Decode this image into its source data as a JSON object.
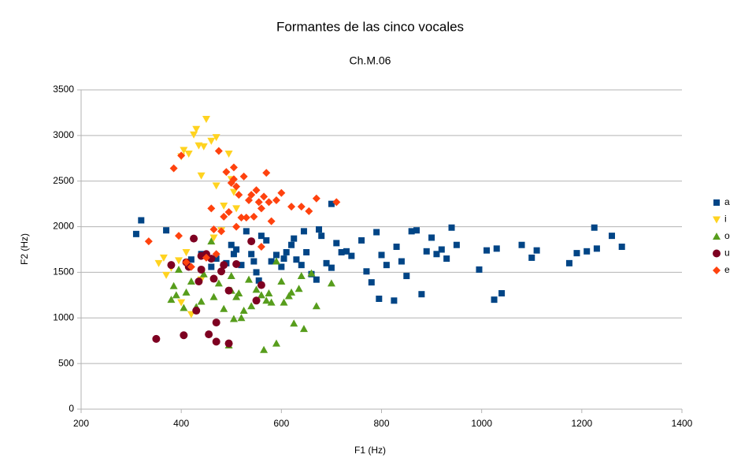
{
  "chart_data": {
    "type": "scatter",
    "title": "Formantes de las cinco vocales",
    "subtitle": "Ch.M.06",
    "x_label": "F1 (Hz)",
    "y_label": "F2 (Hz)",
    "xlim": [
      200,
      1400
    ],
    "xticks": [
      200,
      400,
      600,
      800,
      1000,
      1200,
      1400
    ],
    "ylim": [
      0,
      3500
    ],
    "yticks": [
      0,
      500,
      1000,
      1500,
      2000,
      2500,
      3000,
      3500
    ],
    "grid": true,
    "legend": "right",
    "series": [
      {
        "name": "a",
        "color": "#004586",
        "marker": "square",
        "x": [
          310,
          320,
          370,
          420,
          440,
          460,
          470,
          490,
          500,
          505,
          510,
          520,
          530,
          540,
          545,
          550,
          555,
          560,
          570,
          580,
          590,
          600,
          605,
          610,
          620,
          625,
          630,
          640,
          645,
          650,
          660,
          670,
          675,
          680,
          690,
          700,
          710,
          720,
          730,
          740,
          760,
          770,
          780,
          790,
          795,
          800,
          810,
          825,
          830,
          840,
          850,
          860,
          870,
          880,
          890,
          900,
          910,
          920,
          930,
          940,
          950,
          995,
          1010,
          1025,
          1030,
          1040,
          1080,
          1100,
          1110,
          1175,
          1190,
          1210,
          1225,
          1230,
          1260,
          1280,
          700
        ],
        "values": [
          1920,
          2070,
          1960,
          1640,
          1700,
          1560,
          1650,
          1600,
          1800,
          1700,
          1750,
          1580,
          1950,
          1700,
          1620,
          1500,
          1410,
          1900,
          1850,
          1620,
          1690,
          1560,
          1650,
          1720,
          1800,
          1870,
          1640,
          1580,
          1950,
          1720,
          1480,
          1420,
          1970,
          1900,
          1600,
          1550,
          1820,
          1720,
          1730,
          1680,
          1850,
          1510,
          1390,
          1940,
          1210,
          1690,
          1580,
          1190,
          1780,
          1620,
          1460,
          1950,
          1960,
          1260,
          1730,
          1880,
          1700,
          1750,
          1650,
          1990,
          1800,
          1530,
          1740,
          1200,
          1760,
          1270,
          1800,
          1660,
          1740,
          1600,
          1710,
          1730,
          1990,
          1760,
          1900,
          1780,
          2250
        ]
      },
      {
        "name": "i",
        "color": "#ffd320",
        "marker": "triangle-down",
        "x": [
          355,
          365,
          370,
          380,
          395,
          400,
          400,
          405,
          410,
          415,
          420,
          425,
          430,
          435,
          440,
          445,
          450,
          460,
          465,
          470,
          470,
          480,
          485,
          495,
          500,
          505,
          510,
          440
        ],
        "values": [
          1600,
          1660,
          1470,
          1550,
          1630,
          2770,
          1170,
          2840,
          1720,
          2800,
          1040,
          3010,
          3070,
          2890,
          2560,
          2880,
          3180,
          2940,
          1880,
          2980,
          2450,
          1960,
          2230,
          2800,
          2520,
          2380,
          2200,
          1420
        ]
      },
      {
        "name": "o",
        "color": "#579d1c",
        "marker": "triangle-up",
        "x": [
          380,
          385,
          390,
          395,
          405,
          410,
          420,
          430,
          440,
          445,
          460,
          465,
          475,
          485,
          495,
          500,
          505,
          510,
          515,
          520,
          525,
          535,
          540,
          550,
          560,
          565,
          570,
          575,
          580,
          590,
          600,
          605,
          615,
          620,
          625,
          635,
          640,
          645,
          660,
          670,
          700,
          590,
          500
        ],
        "values": [
          1200,
          1350,
          1250,
          1530,
          1110,
          1280,
          1400,
          1120,
          1180,
          1480,
          1840,
          1230,
          1380,
          1100,
          700,
          1300,
          990,
          1230,
          1270,
          1000,
          1080,
          1420,
          1130,
          1310,
          1250,
          650,
          1190,
          1270,
          1170,
          720,
          1400,
          1170,
          1240,
          1280,
          940,
          1320,
          1460,
          880,
          1490,
          1130,
          1380,
          1620,
          1460
        ]
      },
      {
        "name": "u",
        "color": "#7e0021",
        "marker": "circle",
        "x": [
          350,
          380,
          405,
          410,
          415,
          425,
          430,
          435,
          440,
          450,
          455,
          460,
          465,
          470,
          470,
          480,
          485,
          495,
          495,
          510,
          540,
          550,
          560,
          440
        ],
        "values": [
          770,
          1580,
          810,
          1610,
          1560,
          1870,
          1080,
          1400,
          1680,
          1700,
          820,
          1650,
          1430,
          740,
          950,
          1510,
          1580,
          1300,
          720,
          1590,
          1840,
          1190,
          1360,
          1530
        ]
      },
      {
        "name": "e",
        "color": "#ff420e",
        "marker": "diamond",
        "x": [
          335,
          385,
          395,
          400,
          410,
          420,
          450,
          460,
          465,
          470,
          475,
          480,
          485,
          490,
          495,
          500,
          505,
          505,
          510,
          515,
          520,
          525,
          530,
          535,
          540,
          545,
          550,
          555,
          560,
          565,
          570,
          575,
          580,
          590,
          600,
          620,
          640,
          655,
          670,
          710,
          560,
          510
        ],
        "values": [
          1840,
          2640,
          1900,
          2780,
          1610,
          1560,
          1660,
          2200,
          1970,
          1700,
          2830,
          1950,
          2110,
          2600,
          2160,
          2480,
          2650,
          2520,
          2440,
          2350,
          2100,
          2550,
          2100,
          2290,
          2350,
          2110,
          2400,
          2270,
          2200,
          2330,
          2590,
          2270,
          2060,
          2290,
          2370,
          2220,
          2220,
          2170,
          2310,
          2270,
          1780,
          2000
        ]
      }
    ]
  }
}
